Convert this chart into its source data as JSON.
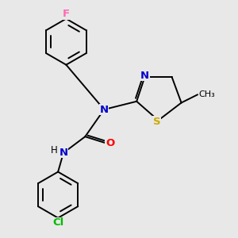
{
  "background_color": "#e8e8e8",
  "bond_color": "#000000",
  "atom_colors": {
    "N": "#0000cc",
    "O": "#ff0000",
    "S": "#ccaa00",
    "F": "#ff69b4",
    "Cl": "#00bb00",
    "C": "#000000"
  },
  "lw": 1.4,
  "fs": 9.5
}
